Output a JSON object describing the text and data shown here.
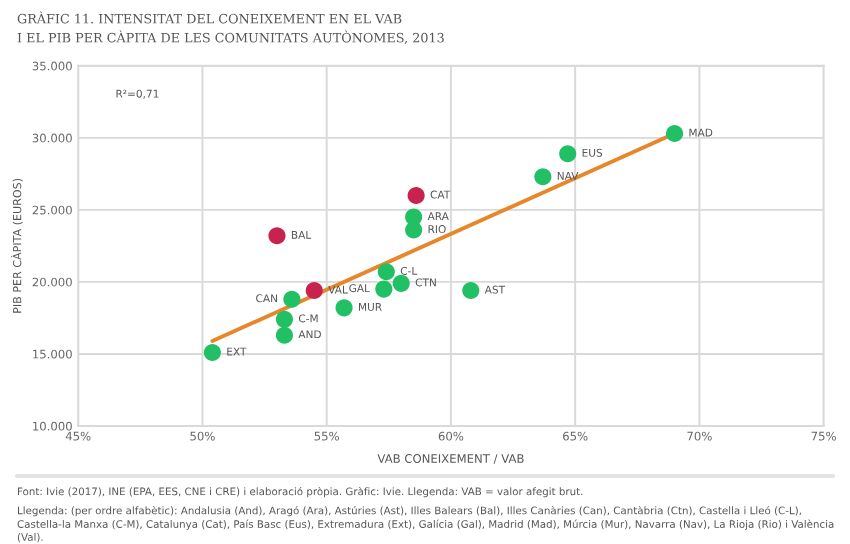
{
  "chart_data": {
    "type": "scatter",
    "title": "GRÀFIC 11. INTENSITAT DEL CONEIXEMENT EN EL VAB\nI EL PIB PER CÀPITA DE LES COMUNITATS AUTÒNOMES, 2013",
    "xlabel": "VAB CONEIXEMENT / VAB",
    "ylabel": "PIB PER CÀPITA (EUROS)",
    "series": [
      {
        "marker": "circle",
        "x": [
          50.4,
          53.3,
          53.3,
          53.6,
          54.5,
          55.7,
          53.0,
          57.3,
          57.4,
          58.0,
          58.6,
          58.5,
          58.5,
          60.8,
          63.7,
          64.7,
          69.0
        ],
        "values": [
          15100,
          16300,
          17400,
          18800,
          19400,
          18200,
          23200,
          19500,
          20700,
          19900,
          26000,
          24500,
          23600,
          19400,
          27300,
          28900,
          30300
        ],
        "colors": [
          "#22c064",
          "#22c064",
          "#22c064",
          "#22c064",
          "#c8234f",
          "#22c064",
          "#c8234f",
          "#22c064",
          "#22c064",
          "#22c064",
          "#c8234f",
          "#22c064",
          "#22c064",
          "#22c064",
          "#22c064",
          "#22c064",
          "#22c064"
        ]
      },
      {
        "type": "line",
        "x": [
          50.4,
          69.0
        ],
        "values": [
          15900,
          30300
        ],
        "color": "#e8872a"
      }
    ],
    "xlim": [
      45,
      75
    ],
    "ylim": [
      10000,
      35000
    ],
    "xticks": [
      {
        "value": 45,
        "label": "45%"
      },
      {
        "value": 50,
        "label": "50%"
      },
      {
        "value": 55,
        "label": "55%"
      },
      {
        "value": 60,
        "label": "60%"
      },
      {
        "value": 65,
        "label": "65%"
      },
      {
        "value": 70,
        "label": "70%"
      },
      {
        "value": 75,
        "label": "75%"
      }
    ],
    "yticks": [
      {
        "value": 10000,
        "label": "10.000"
      },
      {
        "value": 15000,
        "label": "15.000"
      },
      {
        "value": 20000,
        "label": "20.000"
      },
      {
        "value": 25000,
        "label": "25.000"
      },
      {
        "value": 30000,
        "label": "30.000"
      },
      {
        "value": 35000,
        "label": "35.000"
      }
    ],
    "grid": true,
    "annotations": [
      {
        "text": "EXT",
        "x": 50.4,
        "y": 15100
      },
      {
        "text": "AND",
        "x": 53.3,
        "y": 16300
      },
      {
        "text": "C-M",
        "x": 53.3,
        "y": 17400
      },
      {
        "text": "CAN",
        "x": 53.6,
        "y": 18800
      },
      {
        "text": "VAL",
        "x": 54.5,
        "y": 19400
      },
      {
        "text": "MUR",
        "x": 55.7,
        "y": 18200
      },
      {
        "text": "BAL",
        "x": 53.0,
        "y": 23200
      },
      {
        "text": "GAL",
        "x": 57.3,
        "y": 19500
      },
      {
        "text": "C-L",
        "x": 57.4,
        "y": 20700
      },
      {
        "text": "CTN",
        "x": 58.0,
        "y": 19900
      },
      {
        "text": "CAT",
        "x": 58.6,
        "y": 26000
      },
      {
        "text": "ARA",
        "x": 58.5,
        "y": 24500
      },
      {
        "text": "RIO",
        "x": 58.5,
        "y": 23600
      },
      {
        "text": "AST",
        "x": 60.8,
        "y": 19400
      },
      {
        "text": "NAV",
        "x": 63.7,
        "y": 27300
      },
      {
        "text": "EUS",
        "x": 64.7,
        "y": 28900
      },
      {
        "text": "MAD",
        "x": 69.0,
        "y": 30300
      },
      "R²=0,71",
      "Font: Ivie (2017), INE (EPA, EES, CNE i CRE) i elaboració pròpia. Gràfic: Ivie. Llegenda: VAB = valor afegit brut.",
      "Llegenda: (per ordre alfabètic): Andalusia (And), Aragó (Ara), Astúries (Ast), Illes Balears (Bal), Illes Canàries (Can), Cantàbria (Ctn), Castella i Lleó (C-L), Castella-la Manxa (C-M), Catalunya (Cat), País Basc (Eus), Extremadura (Ext), Galícia (Gal), Madrid (Mad), Múrcia (Mur), Navarra (Nav), La Rioja (Rio) i València (Val)."
    ]
  }
}
